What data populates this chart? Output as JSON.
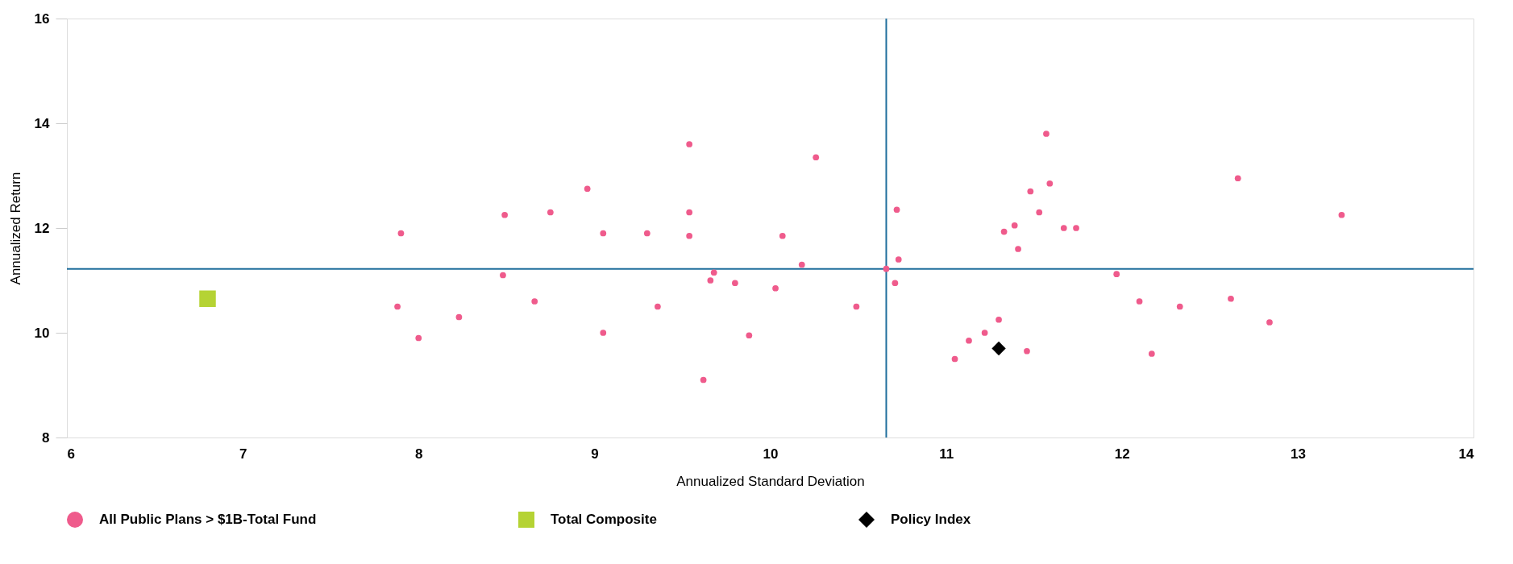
{
  "chart_data": {
    "type": "scatter",
    "xlabel": "Annualized Standard Deviation",
    "ylabel": "Annualized Return",
    "xlim": [
      6,
      14
    ],
    "xticks": [
      6,
      7,
      8,
      9,
      10,
      11,
      12,
      13,
      14
    ],
    "ylim": [
      8,
      16
    ],
    "yticks": [
      8,
      10,
      12,
      14,
      16
    ],
    "grid": false,
    "legend": "bottom",
    "series": [
      {
        "name": "All Public Plans > $1B-Total Fund",
        "color": "#ef5b8c",
        "marker": "circle",
        "x": [
          7.9,
          7.88,
          8.0,
          8.23,
          8.49,
          8.48,
          8.66,
          8.75,
          8.96,
          9.05,
          9.05,
          9.3,
          9.36,
          9.54,
          9.54,
          9.54,
          9.62,
          9.66,
          9.68,
          9.8,
          9.88,
          10.03,
          10.07,
          10.18,
          10.26,
          10.49,
          10.66,
          10.71,
          10.72,
          10.73,
          11.05,
          11.13,
          11.22,
          11.3,
          11.33,
          11.39,
          11.41,
          11.46,
          11.48,
          11.53,
          11.57,
          11.59,
          11.67,
          11.74,
          11.97,
          12.1,
          12.17,
          12.33,
          12.62,
          12.66,
          12.84,
          13.25
        ],
        "values": [
          11.9,
          10.5,
          9.9,
          10.3,
          12.25,
          11.1,
          10.6,
          12.3,
          12.75,
          11.9,
          10.0,
          11.9,
          10.5,
          13.6,
          12.3,
          11.85,
          9.1,
          11.0,
          11.15,
          10.95,
          9.95,
          10.85,
          11.85,
          11.3,
          13.35,
          10.5,
          11.22,
          10.95,
          12.35,
          11.4,
          9.5,
          9.85,
          10.0,
          10.25,
          11.93,
          12.05,
          11.6,
          9.65,
          12.7,
          12.3,
          13.8,
          12.85,
          12.0,
          12.0,
          11.12,
          10.6,
          9.6,
          10.5,
          10.65,
          12.95,
          10.2,
          12.25
        ]
      },
      {
        "name": "Total Composite",
        "color": "#b5d334",
        "marker": "square",
        "x": [
          6.8
        ],
        "values": [
          10.65
        ]
      },
      {
        "name": "Policy Index",
        "color": "#000000",
        "marker": "diamond",
        "x": [
          11.3
        ],
        "values": [
          9.7
        ]
      }
    ],
    "ref_lines": [
      {
        "axis": "x",
        "value": 10.66,
        "color": "#1f6e9c"
      },
      {
        "axis": "y",
        "value": 11.22,
        "color": "#1f6e9c"
      }
    ]
  }
}
